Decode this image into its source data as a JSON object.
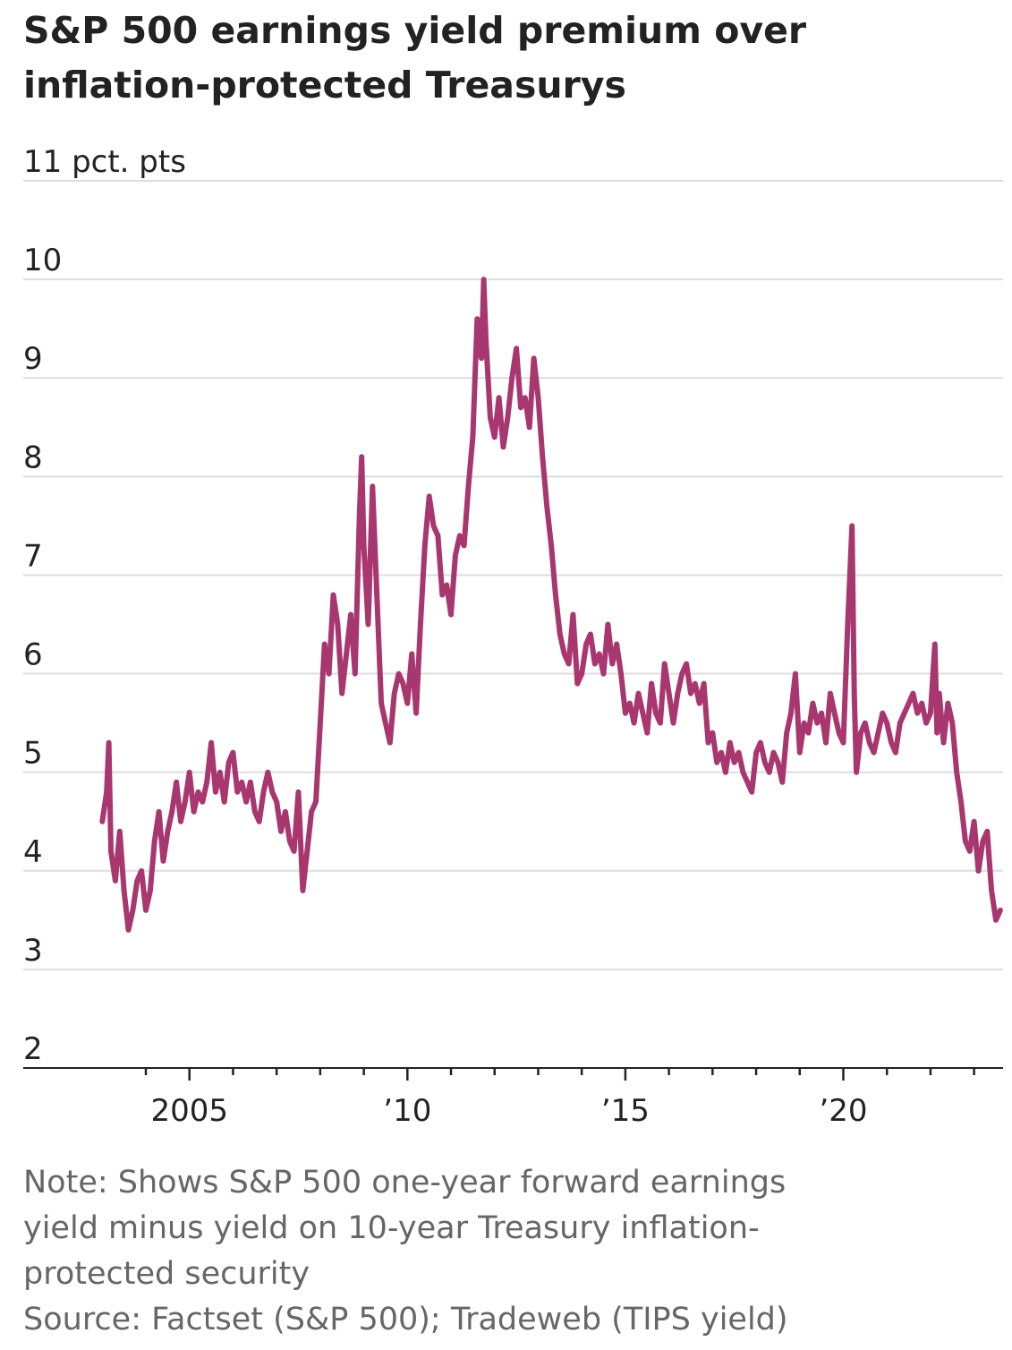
{
  "title_lines": [
    "S&P 500 earnings yield premium over",
    "inflation-protected Treasurys"
  ],
  "note_lines": [
    "Note: Shows S&P 500 one-year forward earnings",
    "yield minus yield on 10-year Treasury inflation-",
    "protected security"
  ],
  "source": "Source: Factset (S&P 500); Tradeweb (TIPS yield)",
  "colors": {
    "line": "#A8366F",
    "grid": "#DDDDDD",
    "axis": "#222222",
    "text": "#222222",
    "note": "#666666"
  },
  "chart_data": {
    "type": "line",
    "title": "S&P 500 earnings yield premium over inflation-protected Treasurys",
    "ylabel": "11 pct. pts",
    "ylim": [
      2,
      11
    ],
    "yticks": [
      2,
      3,
      4,
      5,
      6,
      7,
      8,
      9,
      10,
      11
    ],
    "ytick_labels": [
      "2",
      "3",
      "4",
      "5",
      "6",
      "7",
      "8",
      "9",
      "10",
      "11 pct. pts"
    ],
    "xlim": [
      2002.9,
      2023.8
    ],
    "xticks": [
      2005,
      2010,
      2015,
      2020
    ],
    "xtick_labels": [
      "2005",
      "’10",
      "’15",
      "’20"
    ],
    "minor_xticks": [
      2004,
      2006,
      2007,
      2008,
      2009,
      2011,
      2012,
      2013,
      2014,
      2016,
      2017,
      2018,
      2019,
      2021,
      2022,
      2023
    ],
    "grid": true,
    "series": [
      {
        "x": [
          2003.0,
          2003.1,
          2003.15,
          2003.2,
          2003.3,
          2003.4,
          2003.5,
          2003.6,
          2003.7,
          2003.8,
          2003.9,
          2004.0,
          2004.1,
          2004.2,
          2004.3,
          2004.4,
          2004.5,
          2004.6,
          2004.7,
          2004.8,
          2004.9,
          2005.0,
          2005.1,
          2005.2,
          2005.3,
          2005.4,
          2005.5,
          2005.6,
          2005.7,
          2005.8,
          2005.9,
          2006.0,
          2006.1,
          2006.2,
          2006.3,
          2006.4,
          2006.5,
          2006.6,
          2006.7,
          2006.8,
          2006.9,
          2007.0,
          2007.1,
          2007.2,
          2007.3,
          2007.4,
          2007.5,
          2007.6,
          2007.7,
          2007.8,
          2007.9,
          2008.0,
          2008.1,
          2008.2,
          2008.3,
          2008.4,
          2008.5,
          2008.6,
          2008.7,
          2008.8,
          2008.9,
          2008.95,
          2009.0,
          2009.1,
          2009.2,
          2009.3,
          2009.4,
          2009.5,
          2009.6,
          2009.7,
          2009.8,
          2009.9,
          2010.0,
          2010.1,
          2010.2,
          2010.3,
          2010.4,
          2010.5,
          2010.6,
          2010.7,
          2010.8,
          2010.9,
          2011.0,
          2011.1,
          2011.2,
          2011.3,
          2011.4,
          2011.5,
          2011.6,
          2011.7,
          2011.75,
          2011.8,
          2011.9,
          2012.0,
          2012.1,
          2012.2,
          2012.3,
          2012.4,
          2012.5,
          2012.6,
          2012.7,
          2012.8,
          2012.9,
          2013.0,
          2013.1,
          2013.2,
          2013.3,
          2013.4,
          2013.5,
          2013.6,
          2013.7,
          2013.8,
          2013.9,
          2014.0,
          2014.1,
          2014.2,
          2014.3,
          2014.4,
          2014.5,
          2014.6,
          2014.7,
          2014.8,
          2014.9,
          2015.0,
          2015.1,
          2015.2,
          2015.3,
          2015.4,
          2015.5,
          2015.6,
          2015.7,
          2015.8,
          2015.9,
          2016.0,
          2016.1,
          2016.2,
          2016.3,
          2016.4,
          2016.5,
          2016.6,
          2016.7,
          2016.8,
          2016.9,
          2017.0,
          2017.1,
          2017.2,
          2017.3,
          2017.4,
          2017.5,
          2017.6,
          2017.7,
          2017.8,
          2017.9,
          2018.0,
          2018.1,
          2018.2,
          2018.3,
          2018.4,
          2018.5,
          2018.6,
          2018.7,
          2018.8,
          2018.9,
          2019.0,
          2019.1,
          2019.2,
          2019.3,
          2019.4,
          2019.5,
          2019.6,
          2019.7,
          2019.8,
          2019.9,
          2020.0,
          2020.1,
          2020.2,
          2020.25,
          2020.3,
          2020.4,
          2020.5,
          2020.6,
          2020.7,
          2020.8,
          2020.9,
          2021.0,
          2021.1,
          2021.2,
          2021.3,
          2021.4,
          2021.5,
          2021.6,
          2021.7,
          2021.8,
          2021.9,
          2022.0,
          2022.1,
          2022.15,
          2022.2,
          2022.3,
          2022.4,
          2022.5,
          2022.6,
          2022.7,
          2022.8,
          2022.9,
          2023.0,
          2023.1,
          2023.2,
          2023.3,
          2023.4,
          2023.5,
          2023.6
        ],
        "values": [
          4.5,
          4.8,
          5.3,
          4.2,
          3.9,
          4.4,
          3.8,
          3.4,
          3.6,
          3.9,
          4.0,
          3.6,
          3.8,
          4.3,
          4.6,
          4.1,
          4.4,
          4.6,
          4.9,
          4.5,
          4.7,
          5.0,
          4.6,
          4.8,
          4.7,
          4.9,
          5.3,
          4.8,
          5.0,
          4.7,
          5.1,
          5.2,
          4.8,
          4.9,
          4.7,
          4.9,
          4.6,
          4.5,
          4.8,
          5.0,
          4.8,
          4.7,
          4.4,
          4.6,
          4.3,
          4.2,
          4.8,
          3.8,
          4.2,
          4.6,
          4.7,
          5.5,
          6.3,
          6.0,
          6.8,
          6.5,
          5.8,
          6.2,
          6.6,
          6.0,
          7.6,
          8.2,
          7.3,
          6.5,
          7.9,
          6.8,
          5.7,
          5.5,
          5.3,
          5.8,
          6.0,
          5.9,
          5.7,
          6.2,
          5.6,
          6.5,
          7.3,
          7.8,
          7.5,
          7.4,
          6.8,
          6.9,
          6.6,
          7.2,
          7.4,
          7.3,
          7.9,
          8.4,
          9.6,
          9.2,
          10.0,
          9.4,
          8.6,
          8.4,
          8.8,
          8.3,
          8.6,
          9.0,
          9.3,
          8.7,
          8.8,
          8.5,
          9.2,
          8.8,
          8.2,
          7.7,
          7.3,
          6.8,
          6.4,
          6.2,
          6.1,
          6.6,
          5.9,
          6.0,
          6.3,
          6.4,
          6.1,
          6.2,
          6.0,
          6.5,
          6.1,
          6.3,
          6.0,
          5.6,
          5.7,
          5.5,
          5.8,
          5.6,
          5.4,
          5.9,
          5.6,
          5.5,
          6.1,
          5.8,
          5.5,
          5.8,
          6.0,
          6.1,
          5.8,
          5.9,
          5.7,
          5.9,
          5.3,
          5.4,
          5.1,
          5.2,
          5.0,
          5.3,
          5.1,
          5.2,
          5.0,
          4.9,
          4.8,
          5.2,
          5.3,
          5.1,
          5.0,
          5.2,
          5.1,
          4.9,
          5.4,
          5.6,
          6.0,
          5.2,
          5.5,
          5.4,
          5.7,
          5.5,
          5.6,
          5.3,
          5.8,
          5.6,
          5.4,
          5.3,
          6.5,
          7.5,
          5.8,
          5.0,
          5.4,
          5.5,
          5.3,
          5.2,
          5.4,
          5.6,
          5.5,
          5.3,
          5.2,
          5.5,
          5.6,
          5.7,
          5.8,
          5.6,
          5.7,
          5.5,
          5.6,
          6.3,
          5.4,
          5.8,
          5.3,
          5.7,
          5.5,
          5.0,
          4.7,
          4.3,
          4.2,
          4.5,
          4.0,
          4.3,
          4.4,
          3.8,
          3.5,
          3.6
        ]
      }
    ]
  }
}
